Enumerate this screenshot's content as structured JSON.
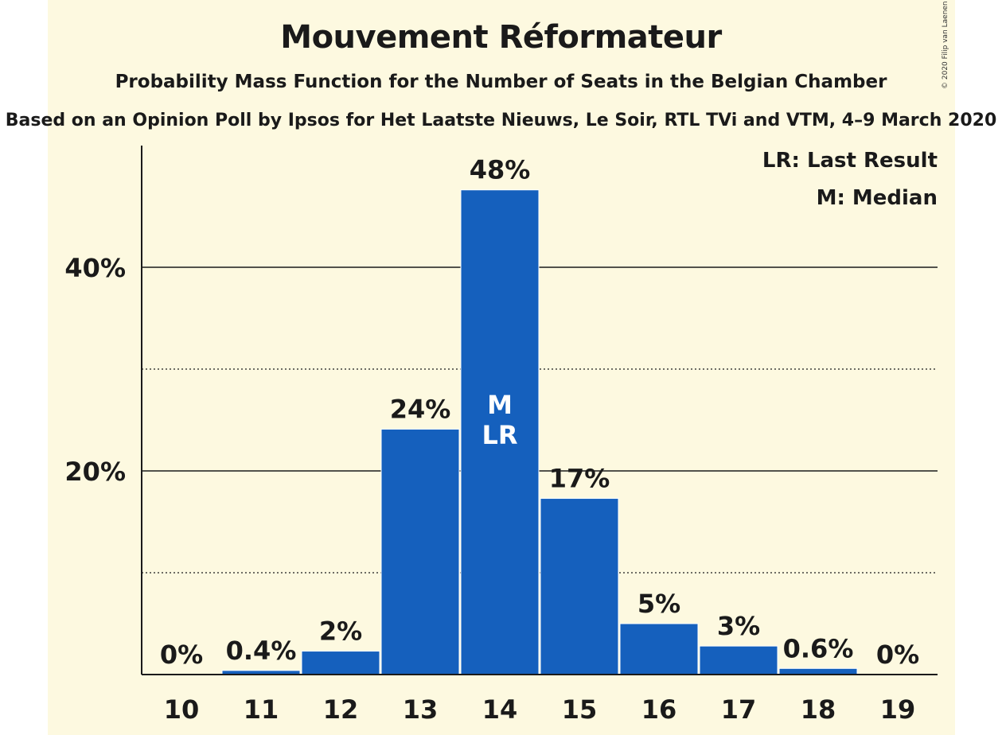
{
  "title": "Mouvement Réformateur",
  "subtitle": "Probability Mass Function for the Number of Seats in the Belgian Chamber",
  "subtitle2": "Based on an Opinion Poll by Ipsos for Het Laatste Nieuws, Le Soir, RTL TVi and VTM, 4–9 March 2020",
  "copyright": "© 2020 Filip van Laenen",
  "legend": [
    "LR: Last Result",
    "M: Median"
  ],
  "colors": {
    "bar": "#1560bd",
    "background": "#fdf9e0",
    "text": "#1a1a1a"
  },
  "chart_data": {
    "type": "bar",
    "categories": [
      "10",
      "11",
      "12",
      "13",
      "14",
      "15",
      "16",
      "17",
      "18",
      "19"
    ],
    "values": [
      0,
      0.4,
      2.3,
      24.1,
      47.6,
      17.3,
      5.0,
      2.8,
      0.6,
      0
    ],
    "data_labels": [
      "0%",
      "0.4%",
      "2%",
      "24%",
      "48%",
      "17%",
      "5%",
      "3%",
      "0.6%",
      "0%"
    ],
    "bar_marks": {
      "14": [
        "M",
        "LR"
      ]
    },
    "ylim": [
      0,
      52
    ],
    "yticks": [
      20,
      40
    ],
    "ytick_labels": [
      "20%",
      "40%"
    ],
    "minor_gridlines": [
      10,
      30
    ],
    "grid": true,
    "legend_placement": "top-right"
  }
}
